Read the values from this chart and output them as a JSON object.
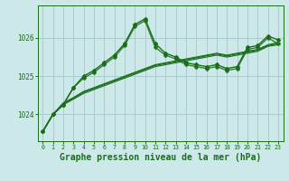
{
  "bg_color": "#cce8e8",
  "grid_color": "#aacccc",
  "line_color": "#1a6e1a",
  "xlabel": "Graphe pression niveau de la mer (hPa)",
  "xlabel_fontsize": 7,
  "yticks": [
    1024,
    1025,
    1026
  ],
  "xticks": [
    0,
    1,
    2,
    3,
    4,
    5,
    6,
    7,
    8,
    9,
    10,
    11,
    12,
    13,
    14,
    15,
    16,
    17,
    18,
    19,
    20,
    21,
    22,
    23
  ],
  "xlim": [
    -0.5,
    23.5
  ],
  "ylim": [
    1023.3,
    1026.85
  ],
  "series1_x": [
    0,
    1,
    2,
    3,
    4,
    5,
    6,
    7,
    8,
    9,
    10,
    11,
    12,
    13,
    14,
    15,
    16,
    17,
    18,
    19,
    20,
    21,
    22,
    23
  ],
  "series1_y": [
    1023.55,
    1024.0,
    1024.25,
    1024.7,
    1025.0,
    1025.15,
    1025.35,
    1025.55,
    1025.85,
    1026.35,
    1026.5,
    1025.85,
    1025.6,
    1025.5,
    1025.35,
    1025.3,
    1025.25,
    1025.3,
    1025.2,
    1025.25,
    1025.75,
    1025.8,
    1026.05,
    1025.95
  ],
  "series2_x": [
    0,
    1,
    2,
    3,
    4,
    5,
    6,
    7,
    8,
    9,
    10,
    11,
    12,
    13,
    14,
    15,
    16,
    17,
    18,
    19,
    20,
    21,
    22,
    23
  ],
  "series2_y": [
    1023.55,
    1024.0,
    1024.25,
    1024.7,
    1024.95,
    1025.1,
    1025.3,
    1025.5,
    1025.8,
    1026.3,
    1026.45,
    1025.75,
    1025.55,
    1025.45,
    1025.3,
    1025.25,
    1025.2,
    1025.25,
    1025.15,
    1025.2,
    1025.7,
    1025.75,
    1026.0,
    1025.85
  ],
  "trend1_x": [
    0,
    1,
    2,
    3,
    4,
    5,
    6,
    7,
    8,
    9,
    10,
    11,
    12,
    13,
    14,
    15,
    16,
    17,
    18,
    19,
    20,
    21,
    22,
    23
  ],
  "trend1_y": [
    1023.55,
    1024.0,
    1024.25,
    1024.4,
    1024.55,
    1024.65,
    1024.75,
    1024.85,
    1024.95,
    1025.05,
    1025.15,
    1025.25,
    1025.3,
    1025.35,
    1025.4,
    1025.45,
    1025.5,
    1025.55,
    1025.5,
    1025.55,
    1025.6,
    1025.65,
    1025.78,
    1025.82
  ],
  "trend2_x": [
    0,
    1,
    2,
    3,
    4,
    5,
    6,
    7,
    8,
    9,
    10,
    11,
    12,
    13,
    14,
    15,
    16,
    17,
    18,
    19,
    20,
    21,
    22,
    23
  ],
  "trend2_y": [
    1023.55,
    1024.0,
    1024.28,
    1024.42,
    1024.58,
    1024.68,
    1024.78,
    1024.88,
    1024.98,
    1025.08,
    1025.18,
    1025.28,
    1025.33,
    1025.38,
    1025.43,
    1025.48,
    1025.53,
    1025.58,
    1025.53,
    1025.58,
    1025.63,
    1025.68,
    1025.8,
    1025.85
  ],
  "trend3_x": [
    0,
    1,
    2,
    3,
    4,
    5,
    6,
    7,
    8,
    9,
    10,
    11,
    12,
    13,
    14,
    15,
    16,
    17,
    18,
    19,
    20,
    21,
    22,
    23
  ],
  "trend3_y": [
    1023.55,
    1024.0,
    1024.3,
    1024.44,
    1024.6,
    1024.7,
    1024.8,
    1024.9,
    1025.0,
    1025.1,
    1025.2,
    1025.3,
    1025.35,
    1025.4,
    1025.45,
    1025.5,
    1025.55,
    1025.6,
    1025.55,
    1025.6,
    1025.65,
    1025.7,
    1025.82,
    1025.88
  ]
}
